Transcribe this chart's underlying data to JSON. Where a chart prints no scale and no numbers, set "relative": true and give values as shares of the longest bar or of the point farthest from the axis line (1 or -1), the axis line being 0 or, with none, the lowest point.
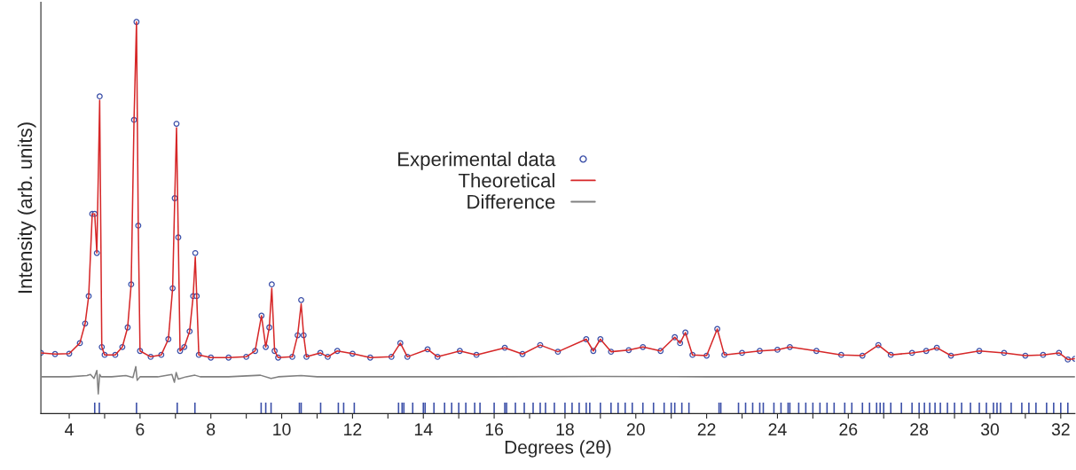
{
  "chart_data": {
    "type": "line",
    "relative": true,
    "xlabel": "Degrees (2θ)",
    "ylabel": "Intensity (arb. units)",
    "xlim": [
      3.2,
      32.4
    ],
    "xticks": [
      4,
      {
        "value": 5,
        "label": null
      },
      6,
      {
        "value": 7,
        "label": null
      },
      8,
      {
        "value": 9,
        "label": null
      },
      10,
      {
        "value": 11,
        "label": null
      },
      12,
      {
        "value": 13,
        "label": null
      },
      14,
      {
        "value": 15,
        "label": null
      },
      16,
      {
        "value": 17,
        "label": null
      },
      18,
      {
        "value": 19,
        "label": null
      },
      20,
      {
        "value": 21,
        "label": null
      },
      22,
      {
        "value": 23,
        "label": null
      },
      24,
      {
        "value": 25,
        "label": null
      },
      26,
      {
        "value": 27,
        "label": null
      },
      28,
      {
        "value": 29,
        "label": null
      },
      30,
      {
        "value": 31,
        "label": null
      },
      32
    ],
    "legend": "top",
    "grid": false,
    "series": [
      {
        "name": "Experimental data",
        "type": "scatter",
        "marker": "circle",
        "color": "#3b4fa8",
        "x": [
          3.2,
          3.6,
          4.0,
          4.3,
          4.45,
          4.55,
          4.65,
          4.72,
          4.78,
          4.86,
          4.92,
          5.0,
          5.3,
          5.5,
          5.65,
          5.75,
          5.83,
          5.9,
          5.95,
          6.0,
          6.3,
          6.6,
          6.8,
          6.92,
          6.98,
          7.03,
          7.08,
          7.13,
          7.25,
          7.4,
          7.5,
          7.56,
          7.6,
          7.66,
          8.0,
          8.5,
          9.0,
          9.25,
          9.43,
          9.55,
          9.65,
          9.72,
          9.8,
          9.9,
          10.3,
          10.45,
          10.55,
          10.62,
          10.7,
          11.09,
          11.3,
          11.57,
          12.0,
          12.5,
          13.1,
          13.35,
          13.55,
          14.12,
          14.4,
          15.03,
          15.5,
          16.3,
          16.8,
          17.3,
          17.8,
          18.6,
          18.8,
          19.0,
          19.3,
          19.8,
          20.2,
          20.7,
          21.1,
          21.25,
          21.4,
          21.6,
          22.0,
          22.3,
          22.5,
          23.0,
          23.5,
          24.0,
          24.35,
          25.1,
          25.8,
          26.4,
          26.85,
          27.2,
          27.8,
          28.2,
          28.5,
          28.9,
          29.7,
          30.4,
          31.0,
          31.5,
          31.95,
          32.2,
          32.4
        ],
        "values": [
          0.155,
          0.152,
          0.153,
          0.18,
          0.23,
          0.3,
          0.51,
          0.51,
          0.41,
          0.81,
          0.17,
          0.15,
          0.15,
          0.17,
          0.22,
          0.33,
          0.75,
          1.0,
          0.48,
          0.16,
          0.145,
          0.15,
          0.19,
          0.32,
          0.55,
          0.74,
          0.45,
          0.16,
          0.17,
          0.21,
          0.3,
          0.41,
          0.3,
          0.15,
          0.143,
          0.143,
          0.145,
          0.16,
          0.25,
          0.17,
          0.22,
          0.33,
          0.16,
          0.143,
          0.145,
          0.2,
          0.29,
          0.2,
          0.145,
          0.155,
          0.145,
          0.16,
          0.153,
          0.143,
          0.145,
          0.18,
          0.145,
          0.164,
          0.145,
          0.16,
          0.15,
          0.168,
          0.152,
          0.175,
          0.158,
          0.19,
          0.16,
          0.19,
          0.158,
          0.162,
          0.17,
          0.16,
          0.195,
          0.18,
          0.207,
          0.15,
          0.148,
          0.216,
          0.15,
          0.155,
          0.16,
          0.163,
          0.17,
          0.16,
          0.15,
          0.148,
          0.175,
          0.15,
          0.155,
          0.16,
          0.168,
          0.148,
          0.16,
          0.155,
          0.148,
          0.15,
          0.155,
          0.138,
          0.14
        ]
      },
      {
        "name": "Theoretical",
        "line_style": "solid",
        "color": "#d62728",
        "x": [
          3.2,
          3.6,
          4.0,
          4.3,
          4.45,
          4.55,
          4.65,
          4.72,
          4.78,
          4.86,
          4.92,
          5.0,
          5.3,
          5.5,
          5.65,
          5.75,
          5.83,
          5.9,
          5.95,
          6.0,
          6.3,
          6.6,
          6.8,
          6.92,
          6.98,
          7.03,
          7.08,
          7.13,
          7.25,
          7.4,
          7.5,
          7.56,
          7.6,
          7.66,
          8.0,
          8.5,
          9.0,
          9.25,
          9.43,
          9.55,
          9.65,
          9.72,
          9.8,
          9.9,
          10.3,
          10.45,
          10.55,
          10.62,
          10.7,
          11.09,
          11.3,
          11.57,
          12.0,
          12.5,
          13.1,
          13.35,
          13.55,
          14.12,
          14.4,
          15.03,
          15.5,
          16.3,
          16.8,
          17.3,
          17.8,
          18.6,
          18.8,
          19.0,
          19.3,
          19.8,
          20.2,
          20.7,
          21.1,
          21.25,
          21.4,
          21.6,
          22.0,
          22.3,
          22.5,
          23.0,
          23.5,
          24.0,
          24.35,
          25.1,
          25.8,
          26.4,
          26.85,
          27.2,
          27.8,
          28.2,
          28.5,
          28.9,
          29.7,
          30.4,
          31.0,
          31.5,
          31.95,
          32.2,
          32.4
        ],
        "values": [
          0.155,
          0.152,
          0.153,
          0.18,
          0.23,
          0.3,
          0.51,
          0.51,
          0.41,
          0.8,
          0.17,
          0.15,
          0.15,
          0.17,
          0.22,
          0.33,
          0.75,
          1.0,
          0.48,
          0.16,
          0.145,
          0.15,
          0.19,
          0.32,
          0.55,
          0.73,
          0.45,
          0.16,
          0.17,
          0.21,
          0.3,
          0.4,
          0.3,
          0.15,
          0.143,
          0.143,
          0.145,
          0.16,
          0.25,
          0.17,
          0.22,
          0.32,
          0.16,
          0.143,
          0.145,
          0.2,
          0.28,
          0.2,
          0.145,
          0.155,
          0.145,
          0.16,
          0.153,
          0.143,
          0.145,
          0.18,
          0.145,
          0.164,
          0.145,
          0.16,
          0.15,
          0.168,
          0.152,
          0.175,
          0.158,
          0.19,
          0.16,
          0.19,
          0.158,
          0.162,
          0.17,
          0.16,
          0.195,
          0.18,
          0.207,
          0.15,
          0.148,
          0.216,
          0.15,
          0.155,
          0.16,
          0.163,
          0.17,
          0.16,
          0.15,
          0.148,
          0.175,
          0.15,
          0.155,
          0.16,
          0.168,
          0.148,
          0.16,
          0.155,
          0.148,
          0.15,
          0.155,
          0.138,
          0.14
        ]
      },
      {
        "name": "Difference",
        "type": "line",
        "line_style": "solid",
        "color": "#808080",
        "x": [
          3.2,
          4.0,
          4.5,
          4.6,
          4.7,
          4.78,
          4.82,
          4.86,
          4.9,
          5.2,
          5.6,
          5.8,
          5.88,
          5.92,
          6.0,
          6.5,
          6.9,
          6.97,
          7.02,
          7.08,
          7.3,
          7.55,
          7.7,
          8.5,
          9.4,
          9.7,
          9.9,
          10.55,
          11.0,
          13.0,
          16.0,
          19.0,
          22.0,
          25.0,
          28.0,
          31.0,
          32.4
        ],
        "values": [
          0.094,
          0.094,
          0.097,
          0.1,
          0.09,
          0.11,
          0.05,
          0.1,
          0.094,
          0.094,
          0.097,
          0.092,
          0.12,
          0.085,
          0.094,
          0.094,
          0.1,
          0.08,
          0.105,
          0.088,
          0.094,
          0.098,
          0.094,
          0.094,
          0.098,
          0.09,
          0.094,
          0.097,
          0.094,
          0.094,
          0.094,
          0.095,
          0.094,
          0.094,
          0.094,
          0.094,
          0.094
        ]
      },
      {
        "type": "bar",
        "color": "#3b4fa8",
        "x": [
          4.72,
          4.85,
          5.9,
          7.05,
          7.55,
          9.42,
          9.55,
          9.7,
          10.5,
          10.55,
          11.1,
          11.6,
          11.75,
          12.05,
          13.3,
          13.4,
          13.45,
          13.7,
          14.0,
          14.05,
          14.3,
          14.6,
          14.8,
          15.0,
          15.2,
          15.45,
          15.6,
          16.0,
          16.3,
          16.35,
          16.6,
          16.85,
          17.1,
          17.3,
          17.45,
          17.7,
          18.0,
          18.2,
          18.4,
          18.6,
          18.7,
          19.0,
          19.3,
          19.5,
          19.7,
          19.9,
          20.2,
          20.5,
          20.8,
          21.0,
          21.1,
          21.3,
          21.5,
          22.35,
          22.4,
          22.9,
          23.1,
          23.3,
          23.5,
          23.6,
          23.9,
          24.1,
          24.3,
          24.35,
          24.6,
          24.8,
          25.0,
          25.2,
          25.4,
          25.6,
          25.9,
          26.1,
          26.4,
          26.6,
          26.8,
          26.9,
          27.0,
          27.2,
          27.5,
          27.8,
          28.0,
          28.15,
          28.3,
          28.45,
          28.6,
          28.8,
          29.0,
          29.2,
          29.45,
          29.7,
          29.9,
          30.1,
          30.2,
          30.3,
          30.6,
          30.9,
          31.1,
          31.3,
          31.6,
          31.8,
          32.0,
          32.2
        ],
        "values": [
          0.028,
          0.028,
          0.028,
          0.028,
          0.028,
          0.028,
          0.028,
          0.028,
          0.028,
          0.028,
          0.028,
          0.028,
          0.028,
          0.028,
          0.028,
          0.028,
          0.028,
          0.028,
          0.028,
          0.028,
          0.028,
          0.028,
          0.028,
          0.028,
          0.028,
          0.028,
          0.028,
          0.028,
          0.028,
          0.028,
          0.028,
          0.028,
          0.028,
          0.028,
          0.028,
          0.028,
          0.028,
          0.028,
          0.028,
          0.028,
          0.028,
          0.028,
          0.028,
          0.028,
          0.028,
          0.028,
          0.028,
          0.028,
          0.028,
          0.028,
          0.028,
          0.028,
          0.028,
          0.028,
          0.028,
          0.028,
          0.028,
          0.028,
          0.028,
          0.028,
          0.028,
          0.028,
          0.028,
          0.028,
          0.028,
          0.028,
          0.028,
          0.028,
          0.028,
          0.028,
          0.028,
          0.028,
          0.028,
          0.028,
          0.028,
          0.028,
          0.028,
          0.028,
          0.028,
          0.028,
          0.028,
          0.028,
          0.028,
          0.028,
          0.028,
          0.028,
          0.028,
          0.028,
          0.028,
          0.028,
          0.028,
          0.028,
          0.028,
          0.028,
          0.028,
          0.028,
          0.028,
          0.028,
          0.028,
          0.028,
          0.028,
          0.028
        ]
      }
    ]
  }
}
